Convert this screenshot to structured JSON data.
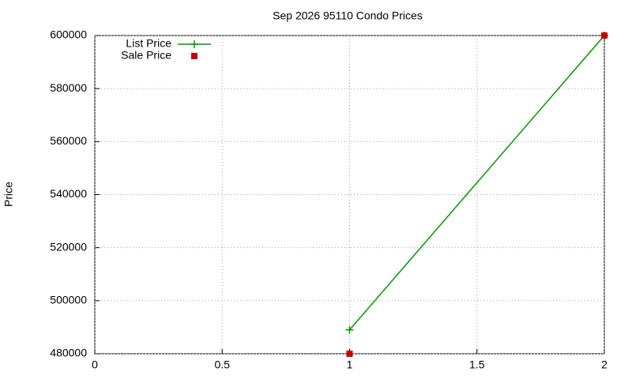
{
  "chart_data": {
    "type": "line",
    "title": "Sep 2026 95110 Condo Prices",
    "y_label": "Price",
    "x": [
      1,
      2
    ],
    "series": [
      {
        "name": "List Price",
        "color": "#009900",
        "style": "linespoints",
        "values": [
          489000,
          600000
        ]
      },
      {
        "name": "Sale Price",
        "color": "#cc0000",
        "style": "points",
        "values": [
          480000,
          600000
        ]
      }
    ],
    "xlim": [
      0,
      2
    ],
    "xticks": [
      0,
      0.5,
      1,
      1.5,
      2
    ],
    "ylim": [
      480000,
      600000
    ],
    "yticks": [
      480000,
      500000,
      520000,
      540000,
      560000,
      580000,
      600000
    ],
    "grid": true,
    "legend": "top-left"
  }
}
